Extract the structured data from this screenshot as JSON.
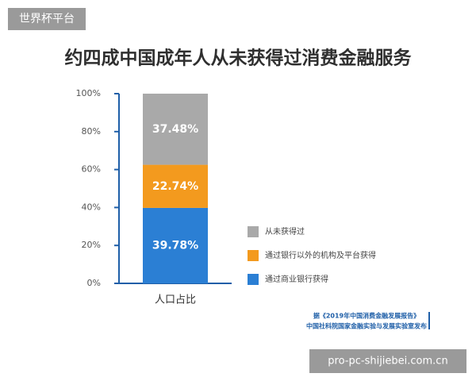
{
  "chart_data": {
    "type": "stacked_bar",
    "title": "约四成中国成年人从未获得过消费金融服务",
    "categories": [
      "人口占比"
    ],
    "series": [
      {
        "name": "通过商业银行获得",
        "color": "#2b7fd4",
        "values": [
          39.78
        ],
        "value_labels": [
          "39.78%"
        ]
      },
      {
        "name": "通过银行以外的机构及平台获得",
        "color": "#f39a1e",
        "values": [
          22.74
        ],
        "value_labels": [
          "22.74%"
        ]
      },
      {
        "name": "从未获得过",
        "color": "#a9a9a9",
        "values": [
          37.48
        ],
        "value_labels": [
          "37.48%"
        ]
      }
    ],
    "ylim": [
      0,
      100
    ],
    "yticks": [
      {
        "value": 0,
        "label": "0%"
      },
      {
        "value": 20,
        "label": "20%"
      },
      {
        "value": 40,
        "label": "40%"
      },
      {
        "value": 60,
        "label": "60%"
      },
      {
        "value": 80,
        "label": "80%"
      },
      {
        "value": 100,
        "label": "100%"
      }
    ],
    "source": [
      "据《2019年中国消费金融发展报告》",
      "中国社科院国家金融实验与发展实验室发布"
    ]
  },
  "watermark": "世界杯平台",
  "site": "pro-pc-shijiebei.com.cn"
}
